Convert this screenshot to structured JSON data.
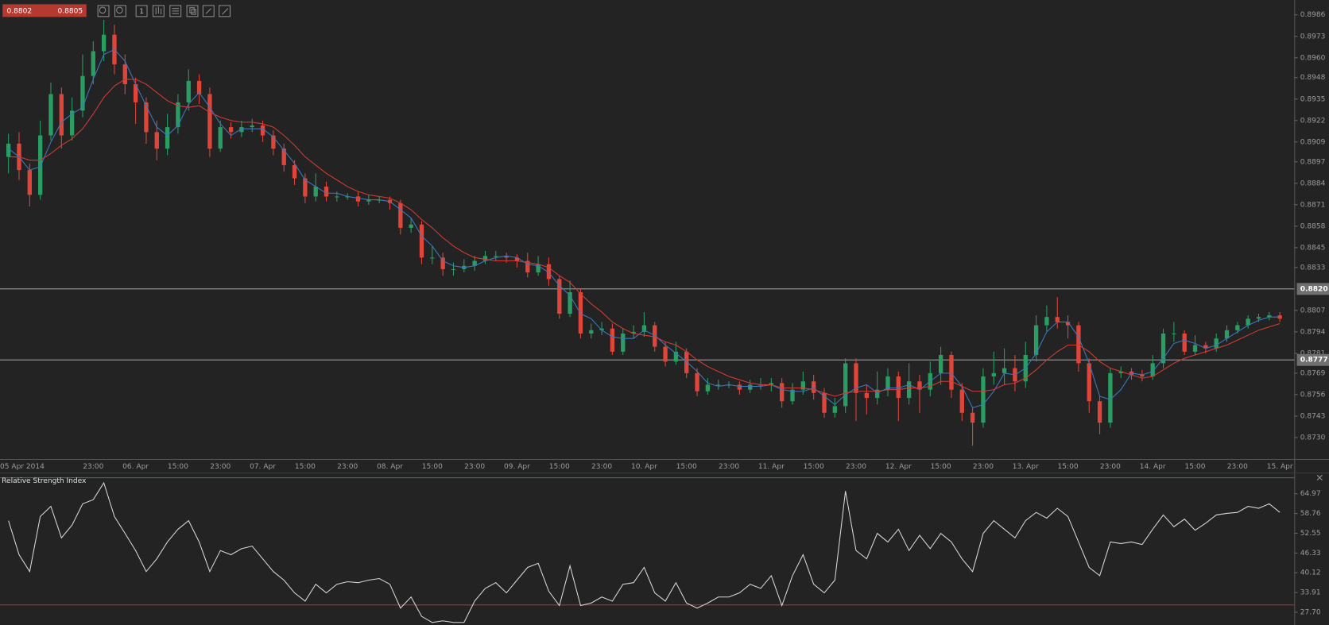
{
  "quote": {
    "bid": "0.8802",
    "ask": "0.8805"
  },
  "toolbar": {
    "period": "1"
  },
  "chart_data": [
    {
      "type": "candlestick",
      "categories": [
        null,
        "05 Apr 2014",
        null,
        null,
        null,
        null,
        null,
        null,
        "23:00",
        null,
        null,
        null,
        "06. Apr",
        null,
        null,
        null,
        "15:00",
        null,
        null,
        null,
        "23:00",
        null,
        null,
        null,
        "07. Apr",
        null,
        null,
        null,
        "15:00",
        null,
        null,
        null,
        "23:00",
        null,
        null,
        null,
        "08. Apr",
        null,
        null,
        null,
        "15:00",
        null,
        null,
        null,
        "23:00",
        null,
        null,
        null,
        "09. Apr",
        null,
        null,
        null,
        "15:00",
        null,
        null,
        null,
        "23:00",
        null,
        null,
        null,
        "10. Apr",
        null,
        null,
        null,
        "15:00",
        null,
        null,
        null,
        "23:00",
        null,
        null,
        null,
        "11. Apr",
        null,
        null,
        null,
        "15:00",
        null,
        null,
        null,
        "23:00",
        null,
        null,
        null,
        "12. Apr",
        null,
        null,
        null,
        "15:00",
        null,
        null,
        null,
        "23:00",
        null,
        null,
        null,
        "13. Apr",
        null,
        null,
        null,
        "15:00",
        null,
        null,
        null,
        "23:00",
        null,
        null,
        null,
        "14. Apr",
        null,
        null,
        null,
        "15:00",
        null,
        null,
        null,
        "23:00",
        null,
        null,
        null,
        "15. Apr"
      ],
      "open": [
        0.89,
        0.8908,
        0.8892,
        0.8877,
        0.8913,
        0.8938,
        0.8913,
        0.8928,
        0.8949,
        0.8964,
        0.8974,
        0.8956,
        0.8944,
        0.8933,
        0.8915,
        0.8905,
        0.8918,
        0.8933,
        0.8946,
        0.8938,
        0.8905,
        0.8918,
        0.8915,
        0.8918,
        0.8919,
        0.8913,
        0.8905,
        0.8895,
        0.8887,
        0.8876,
        0.8882,
        0.8876,
        0.8876,
        0.8876,
        0.8873,
        0.8874,
        0.8874,
        0.8872,
        0.8857,
        0.8859,
        0.8839,
        0.8839,
        0.8832,
        0.8832,
        0.8834,
        0.8837,
        0.884,
        0.884,
        0.8839,
        0.8837,
        0.883,
        0.8835,
        0.8826,
        0.8805,
        0.8818,
        0.8793,
        0.8795,
        0.8796,
        0.8782,
        0.8793,
        0.8794,
        0.8798,
        0.8785,
        0.8776,
        0.8782,
        0.8769,
        0.8758,
        0.8762,
        0.8762,
        0.8762,
        0.8759,
        0.8762,
        0.8762,
        0.8763,
        0.8752,
        0.8759,
        0.8764,
        0.8757,
        0.8745,
        0.8749,
        0.8775,
        0.8757,
        0.8754,
        0.8759,
        0.8767,
        0.8754,
        0.8764,
        0.8759,
        0.8769,
        0.878,
        0.8759,
        0.8745,
        0.8739,
        0.8767,
        0.8769,
        0.8772,
        0.8764,
        0.878,
        0.8798,
        0.8803,
        0.88,
        0.8798,
        0.8775,
        0.8752,
        0.8739,
        0.8769,
        0.877,
        0.8768,
        0.8767,
        0.8775,
        0.8793,
        0.8793,
        0.8782,
        0.8786,
        0.8784,
        0.879,
        0.8795,
        0.8798,
        0.8802,
        0.8803,
        0.8804
      ],
      "high": [
        0.8914,
        0.8915,
        0.8896,
        0.8922,
        0.8945,
        0.8942,
        0.8936,
        0.8962,
        0.897,
        0.8983,
        0.898,
        0.8962,
        0.8948,
        0.8936,
        0.8922,
        0.8926,
        0.8938,
        0.8953,
        0.895,
        0.8942,
        0.8922,
        0.8921,
        0.8922,
        0.8923,
        0.8922,
        0.8916,
        0.8908,
        0.8898,
        0.889,
        0.889,
        0.8885,
        0.8879,
        0.8878,
        0.8879,
        0.8877,
        0.8876,
        0.8876,
        0.8874,
        0.8863,
        0.8861,
        0.8846,
        0.8842,
        0.8836,
        0.8838,
        0.884,
        0.8843,
        0.8843,
        0.8842,
        0.8841,
        0.8842,
        0.884,
        0.8839,
        0.8828,
        0.8825,
        0.882,
        0.8799,
        0.88,
        0.8799,
        0.8796,
        0.8798,
        0.8806,
        0.88,
        0.8788,
        0.8788,
        0.8784,
        0.8772,
        0.8766,
        0.8765,
        0.8764,
        0.8764,
        0.8765,
        0.8766,
        0.8766,
        0.8766,
        0.8763,
        0.877,
        0.8768,
        0.876,
        0.8754,
        0.8778,
        0.8778,
        0.8762,
        0.877,
        0.8772,
        0.877,
        0.8775,
        0.8768,
        0.8776,
        0.8785,
        0.8782,
        0.8763,
        0.8748,
        0.8772,
        0.8782,
        0.8784,
        0.878,
        0.8788,
        0.8804,
        0.881,
        0.8815,
        0.8804,
        0.88,
        0.8778,
        0.8755,
        0.8772,
        0.8773,
        0.8772,
        0.8771,
        0.878,
        0.8796,
        0.88,
        0.8795,
        0.8792,
        0.8788,
        0.8793,
        0.8798,
        0.88,
        0.8804,
        0.8805,
        0.8806,
        0.8806
      ],
      "low": [
        0.889,
        0.8886,
        0.887,
        0.8874,
        0.891,
        0.8905,
        0.891,
        0.8924,
        0.8944,
        0.8958,
        0.895,
        0.8938,
        0.892,
        0.8908,
        0.8898,
        0.8901,
        0.8914,
        0.8928,
        0.8932,
        0.89,
        0.8903,
        0.8911,
        0.8912,
        0.8915,
        0.8909,
        0.8901,
        0.8891,
        0.8883,
        0.8872,
        0.8873,
        0.8873,
        0.8873,
        0.8874,
        0.887,
        0.8871,
        0.8872,
        0.8868,
        0.8853,
        0.8854,
        0.8835,
        0.8835,
        0.8828,
        0.8828,
        0.883,
        0.8831,
        0.8835,
        0.8837,
        0.8836,
        0.8833,
        0.8827,
        0.8828,
        0.8822,
        0.8802,
        0.8803,
        0.879,
        0.879,
        0.8792,
        0.878,
        0.878,
        0.879,
        0.8791,
        0.8782,
        0.8773,
        0.8774,
        0.8766,
        0.8755,
        0.8756,
        0.8759,
        0.876,
        0.8756,
        0.8757,
        0.8759,
        0.8758,
        0.8748,
        0.875,
        0.8756,
        0.8753,
        0.8742,
        0.8742,
        0.8745,
        0.874,
        0.8744,
        0.875,
        0.8755,
        0.874,
        0.875,
        0.8745,
        0.8755,
        0.8762,
        0.8754,
        0.874,
        0.8725,
        0.8736,
        0.8762,
        0.8762,
        0.8758,
        0.876,
        0.8776,
        0.8794,
        0.8796,
        0.879,
        0.877,
        0.8745,
        0.8732,
        0.8736,
        0.8766,
        0.8765,
        0.8764,
        0.8765,
        0.8772,
        0.8788,
        0.878,
        0.878,
        0.8781,
        0.8782,
        0.8788,
        0.8793,
        0.8796,
        0.88,
        0.8801,
        0.88
      ],
      "close": [
        0.8908,
        0.8892,
        0.8877,
        0.8913,
        0.8938,
        0.8913,
        0.8928,
        0.8949,
        0.8964,
        0.8974,
        0.8956,
        0.8944,
        0.8933,
        0.8915,
        0.8905,
        0.8918,
        0.8933,
        0.8946,
        0.8938,
        0.8905,
        0.8918,
        0.8915,
        0.8918,
        0.8919,
        0.8913,
        0.8905,
        0.8895,
        0.8887,
        0.8876,
        0.8882,
        0.8876,
        0.8876,
        0.8876,
        0.8873,
        0.8874,
        0.8874,
        0.8872,
        0.8857,
        0.8859,
        0.8839,
        0.8839,
        0.8832,
        0.8832,
        0.8834,
        0.8837,
        0.884,
        0.884,
        0.8839,
        0.8837,
        0.883,
        0.8835,
        0.8826,
        0.8805,
        0.8818,
        0.8793,
        0.8795,
        0.8796,
        0.8782,
        0.8793,
        0.8794,
        0.8798,
        0.8785,
        0.8776,
        0.8782,
        0.8769,
        0.8758,
        0.8762,
        0.8762,
        0.8762,
        0.8759,
        0.8762,
        0.8762,
        0.8763,
        0.8752,
        0.8759,
        0.8764,
        0.8757,
        0.8745,
        0.8749,
        0.8775,
        0.8757,
        0.8754,
        0.8759,
        0.8767,
        0.8754,
        0.8764,
        0.8759,
        0.8769,
        0.878,
        0.8759,
        0.8745,
        0.8739,
        0.8767,
        0.8769,
        0.8772,
        0.8764,
        0.878,
        0.8798,
        0.8803,
        0.88,
        0.8798,
        0.8775,
        0.8752,
        0.8739,
        0.8769,
        0.877,
        0.8768,
        0.8767,
        0.8775,
        0.8793,
        0.8793,
        0.8782,
        0.8786,
        0.8784,
        0.879,
        0.8795,
        0.8798,
        0.8802,
        0.8803,
        0.8804,
        0.8802
      ],
      "up_color": "#2a9d62",
      "down_color": "#df4639",
      "overlays": [
        {
          "color": "#3b78c0",
          "values": [
            0.8905,
            0.89,
            0.8892,
            0.8894,
            0.8909,
            0.8921,
            0.8926,
            0.893,
            0.8947,
            0.8962,
            0.8965,
            0.8958,
            0.8944,
            0.8931,
            0.8918,
            0.8913,
            0.8919,
            0.8932,
            0.8939,
            0.893,
            0.892,
            0.8913,
            0.8917,
            0.8917,
            0.8917,
            0.8912,
            0.8904,
            0.8896,
            0.8886,
            0.8882,
            0.8878,
            0.8878,
            0.8876,
            0.8875,
            0.8874,
            0.8874,
            0.8873,
            0.8868,
            0.8863,
            0.8852,
            0.8846,
            0.8837,
            0.8834,
            0.8833,
            0.8834,
            0.8837,
            0.8839,
            0.884,
            0.8839,
            0.8835,
            0.8834,
            0.883,
            0.8822,
            0.8816,
            0.8805,
            0.8802,
            0.8795,
            0.8791,
            0.879,
            0.879,
            0.8795,
            0.8792,
            0.8786,
            0.8781,
            0.8776,
            0.877,
            0.8763,
            0.8761,
            0.8762,
            0.8761,
            0.8761,
            0.8761,
            0.8762,
            0.8759,
            0.8758,
            0.8758,
            0.876,
            0.8755,
            0.875,
            0.8756,
            0.876,
            0.8762,
            0.8757,
            0.876,
            0.876,
            0.8762,
            0.8759,
            0.8764,
            0.8769,
            0.8769,
            0.8761,
            0.8748,
            0.875,
            0.8758,
            0.8769,
            0.8768,
            0.8772,
            0.8781,
            0.8794,
            0.88,
            0.88,
            0.8791,
            0.8775,
            0.8755,
            0.8753,
            0.8759,
            0.8769,
            0.8768,
            0.877,
            0.8778,
            0.8787,
            0.8789,
            0.8787,
            0.8784,
            0.8786,
            0.879,
            0.8794,
            0.8798,
            0.8801,
            0.8803,
            0.8803
          ]
        },
        {
          "color": "#d33b33",
          "values": [
            0.89,
            0.89,
            0.8898,
            0.8898,
            0.8902,
            0.8907,
            0.8911,
            0.8917,
            0.8926,
            0.8936,
            0.8943,
            0.8947,
            0.8947,
            0.8944,
            0.8939,
            0.8934,
            0.8931,
            0.893,
            0.8931,
            0.8927,
            0.8924,
            0.8922,
            0.8921,
            0.8921,
            0.892,
            0.8918,
            0.8913,
            0.8907,
            0.89,
            0.8895,
            0.889,
            0.8886,
            0.8882,
            0.8879,
            0.8877,
            0.8876,
            0.8875,
            0.8872,
            0.8868,
            0.8862,
            0.8857,
            0.8851,
            0.8846,
            0.8842,
            0.8839,
            0.8838,
            0.8837,
            0.8837,
            0.8837,
            0.8836,
            0.8835,
            0.8833,
            0.8828,
            0.8824,
            0.8817,
            0.8811,
            0.8806,
            0.88,
            0.8796,
            0.8793,
            0.8792,
            0.8791,
            0.8788,
            0.8786,
            0.8782,
            0.8777,
            0.8773,
            0.877,
            0.8767,
            0.8765,
            0.8763,
            0.8762,
            0.8762,
            0.876,
            0.876,
            0.876,
            0.8759,
            0.8757,
            0.8755,
            0.8757,
            0.8758,
            0.8758,
            0.8758,
            0.8759,
            0.8759,
            0.876,
            0.876,
            0.8761,
            0.8764,
            0.8764,
            0.8761,
            0.8758,
            0.8758,
            0.8759,
            0.8762,
            0.8763,
            0.8766,
            0.8771,
            0.8777,
            0.8782,
            0.8786,
            0.8786,
            0.8782,
            0.8776,
            0.8772,
            0.877,
            0.8768,
            0.8766,
            0.8767,
            0.8771,
            0.8775,
            0.8778,
            0.878,
            0.8782,
            0.8784,
            0.8786,
            0.8789,
            0.8792,
            0.8795,
            0.8797,
            0.8799
          ]
        }
      ],
      "hlines": [
        {
          "value": 0.882,
          "label": "0.8820"
        },
        {
          "value": 0.8777,
          "label": "0.8777"
        }
      ],
      "ylim": [
        0.8717,
        0.8995
      ],
      "yticks": [
        0.8986,
        0.8973,
        {
          "value": 0.896,
          "label": "0.8960"
        },
        0.8948,
        0.8935,
        0.8922,
        0.8909,
        0.8897,
        0.8884,
        0.8871,
        0.8858,
        0.8845,
        0.8833,
        0.8807,
        0.8794,
        0.8781,
        0.8769,
        0.8756,
        0.8743,
        {
          "value": 0.873,
          "label": "0.8730"
        }
      ]
    },
    {
      "type": "line",
      "title": "Relative Strength Index",
      "color": "#d6d6d6",
      "values": [
        56.5,
        45.8,
        40.5,
        57.8,
        61.0,
        51.1,
        55.1,
        61.8,
        63.1,
        68.4,
        57.8,
        52.5,
        47.1,
        40.5,
        44.5,
        49.8,
        53.8,
        56.5,
        49.8,
        40.5,
        47.1,
        45.8,
        47.7,
        48.5,
        44.5,
        40.5,
        37.8,
        33.8,
        31.2,
        36.5,
        33.8,
        36.5,
        37.3,
        37.0,
        37.8,
        38.3,
        36.5,
        29.0,
        32.5,
        26.4,
        24.5,
        25.0,
        24.5,
        24.5,
        31.2,
        35.2,
        37.0,
        33.8,
        37.8,
        41.8,
        43.1,
        34.3,
        29.8,
        42.3,
        29.8,
        30.6,
        32.5,
        31.2,
        36.5,
        37.0,
        41.8,
        33.8,
        31.2,
        37.0,
        30.6,
        29.0,
        30.6,
        32.5,
        32.5,
        33.8,
        36.5,
        35.2,
        39.2,
        29.8,
        39.2,
        45.8,
        36.5,
        33.8,
        37.8,
        65.8,
        47.1,
        44.5,
        52.5,
        49.8,
        53.8,
        47.1,
        51.9,
        47.7,
        52.5,
        49.8,
        44.5,
        40.5,
        52.5,
        56.5,
        53.8,
        51.1,
        56.5,
        59.1,
        57.3,
        60.4,
        57.8,
        49.8,
        41.8,
        39.2,
        49.8,
        49.3,
        49.8,
        49.0,
        53.8,
        58.3,
        54.6,
        57.0,
        53.5,
        55.7,
        58.3,
        58.8,
        59.1,
        61.0,
        60.4,
        61.8,
        59.1
      ],
      "levels": [
        70,
        30
      ],
      "level_colors": [
        "#2f7a47",
        "#b8352d"
      ],
      "ylim": [
        23.7,
        70.3
      ],
      "yticks": [
        64.97,
        58.76,
        52.55,
        46.33,
        40.12,
        33.91,
        {
          "value": 27.7,
          "label": "27.70"
        }
      ]
    }
  ]
}
